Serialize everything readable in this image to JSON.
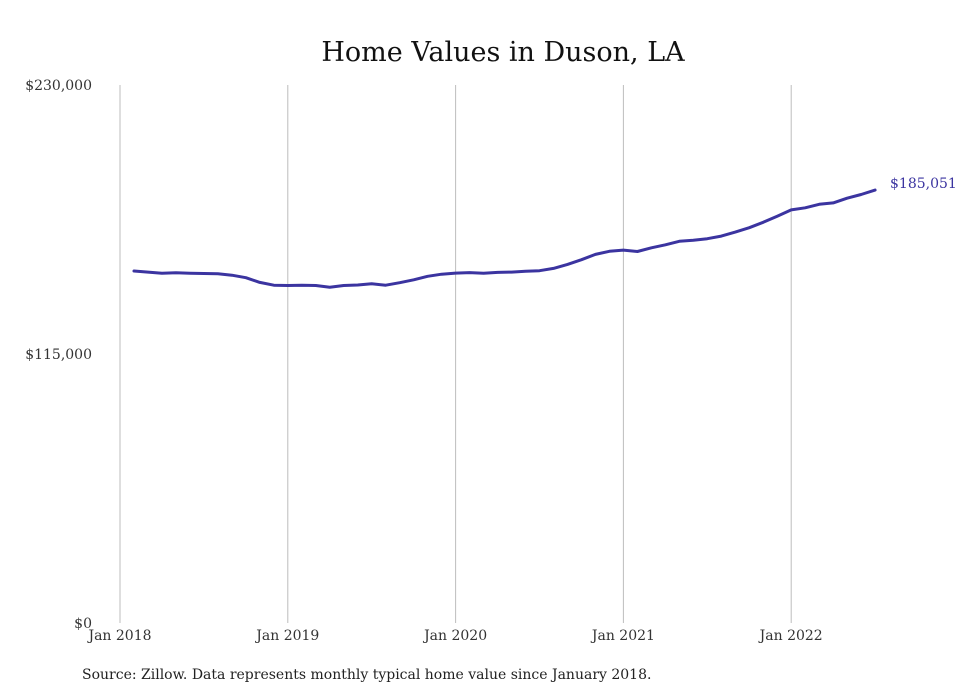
{
  "chart_data": {
    "type": "line",
    "title": "Home Values in Duson, LA",
    "xlabel": "",
    "ylabel": "",
    "ylim": [
      0,
      230000
    ],
    "yticks": [
      0,
      115000,
      230000
    ],
    "ytick_labels": [
      "$0",
      "$115,000",
      "$230,000"
    ],
    "xticks": [
      "2018-01",
      "2019-01",
      "2020-01",
      "2021-01",
      "2022-01"
    ],
    "xtick_labels": [
      "Jan 2018",
      "Jan 2019",
      "Jan 2020",
      "Jan 2021",
      "Jan 2022"
    ],
    "grid": "vertical",
    "line_color": "#3b34a0",
    "series": [
      {
        "x": [
          "2018-02",
          "2018-03",
          "2018-04",
          "2018-05",
          "2018-06",
          "2018-07",
          "2018-08",
          "2018-09",
          "2018-10",
          "2018-11",
          "2018-12",
          "2019-01",
          "2019-02",
          "2019-03",
          "2019-04",
          "2019-05",
          "2019-06",
          "2019-07",
          "2019-08",
          "2019-09",
          "2019-10",
          "2019-11",
          "2019-12",
          "2020-01",
          "2020-02",
          "2020-03",
          "2020-04",
          "2020-05",
          "2020-06",
          "2020-07",
          "2020-08",
          "2020-09",
          "2020-10",
          "2020-11",
          "2020-12",
          "2021-01",
          "2021-02",
          "2021-03",
          "2021-04",
          "2021-05",
          "2021-06",
          "2021-07",
          "2021-08",
          "2021-09",
          "2021-10",
          "2021-11",
          "2021-12",
          "2022-01",
          "2022-02",
          "2022-03",
          "2022-04",
          "2022-05",
          "2022-06",
          "2022-07"
        ],
        "values": [
          150500,
          150000,
          149500,
          149700,
          149500,
          149400,
          149300,
          148700,
          147600,
          145600,
          144400,
          144300,
          144400,
          144300,
          143500,
          144300,
          144500,
          145000,
          144400,
          145500,
          146700,
          148200,
          149100,
          149600,
          149800,
          149500,
          149900,
          150000,
          150400,
          150600,
          151600,
          153300,
          155300,
          157600,
          158900,
          159400,
          158800,
          160400,
          161700,
          163200,
          163600,
          164300,
          165400,
          167100,
          169000,
          171300,
          173900,
          176600,
          177500,
          179000,
          179600,
          181600,
          183200,
          185051
        ]
      }
    ],
    "end_label": "$185,051",
    "source": "Source: Zillow. Data represents monthly typical home value since January 2018."
  }
}
